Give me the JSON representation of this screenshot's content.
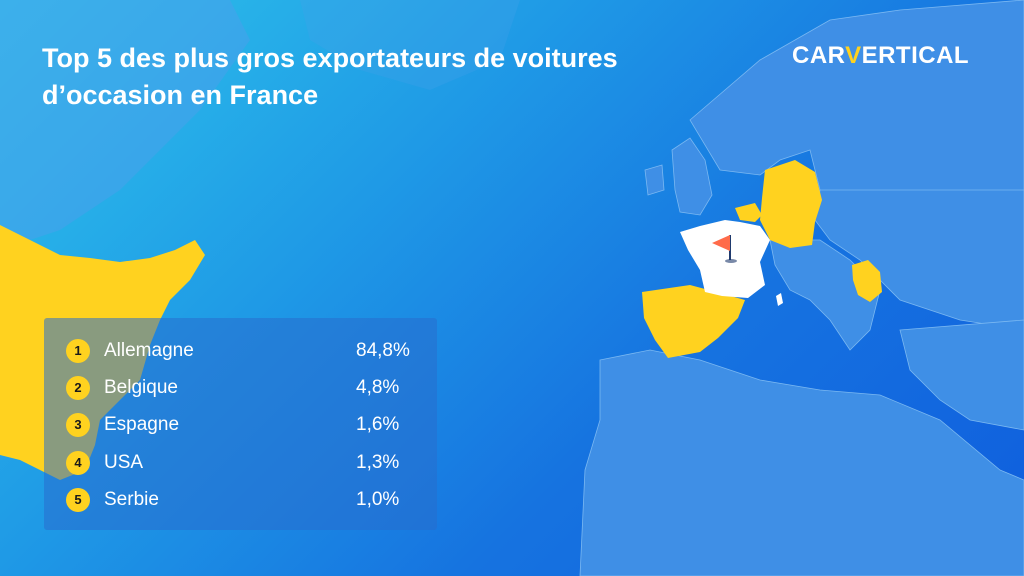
{
  "title": "Top 5 des plus gros exportateurs de voitures d’occasion en France",
  "logo": {
    "part1": "CAR",
    "part2": "V",
    "part3": "ERTICAL"
  },
  "colors": {
    "accent_yellow": "#ffd21f",
    "land_blue": "#3f8fe6",
    "france_white": "#ffffff",
    "flag_red": "#ff6b4a"
  },
  "chart_data": {
    "type": "table",
    "rows": [
      {
        "rank": "1",
        "country": "Allemagne",
        "value": "84,8%"
      },
      {
        "rank": "2",
        "country": "Belgique",
        "value": "4,8%"
      },
      {
        "rank": "3",
        "country": "Espagne",
        "value": "1,6%"
      },
      {
        "rank": "4",
        "country": "USA",
        "value": "1,3%"
      },
      {
        "rank": "5",
        "country": "Serbie",
        "value": "1,0%"
      }
    ],
    "percentages": [
      84.8,
      4.8,
      1.6,
      1.3,
      1.0
    ],
    "highlighted_countries": [
      "Allemagne",
      "Belgique",
      "Espagne",
      "USA",
      "Serbie"
    ],
    "destination_country": "France"
  }
}
